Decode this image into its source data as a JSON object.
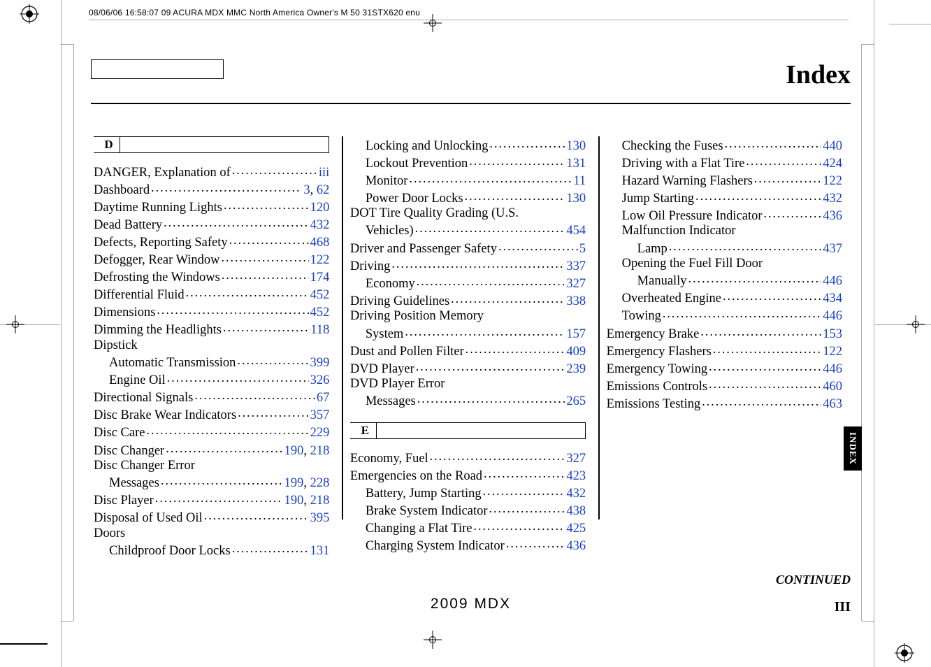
{
  "meta": {
    "header_line": "08/06/06 16:58:07    09 ACURA MDX MMC North America Owner's M 50 31STX620 enu",
    "title": "Index",
    "tab_label": "INDEX",
    "continued": "CONTINUED",
    "footer_model": "2009  MDX",
    "folio": "III"
  },
  "style": {
    "link_color": "#1a3fc5",
    "text_color": "#000000",
    "rule_color": "#000000",
    "body_font_size_pt": 14,
    "title_font_size_pt": 28
  },
  "letters": {
    "D": "D",
    "E": "E"
  },
  "col1": [
    {
      "type": "head",
      "text": "D"
    },
    {
      "label": "DANGER, Explanation of",
      "pages": [
        "iii"
      ]
    },
    {
      "label": "Dashboard",
      "pages": [
        "3",
        "62"
      ]
    },
    {
      "label": "Daytime Running Lights",
      "pages": [
        "120"
      ]
    },
    {
      "label": "Dead Battery",
      "pages": [
        "432"
      ]
    },
    {
      "label": "Defects, Reporting Safety",
      "pages": [
        "468"
      ]
    },
    {
      "label": "Defogger, Rear Window",
      "pages": [
        "122"
      ]
    },
    {
      "label": "Defrosting the Windows",
      "pages": [
        "174"
      ]
    },
    {
      "label": "Differential Fluid",
      "pages": [
        "452"
      ]
    },
    {
      "label": "Dimensions",
      "pages": [
        "452"
      ]
    },
    {
      "label": "Dimming the Headlights",
      "pages": [
        "118"
      ]
    },
    {
      "label": "Dipstick",
      "cont": true
    },
    {
      "label": "Automatic Transmission",
      "pages": [
        "399"
      ],
      "indent": 1
    },
    {
      "label": "Engine Oil",
      "pages": [
        "326"
      ],
      "indent": 1
    },
    {
      "label": "Directional Signals",
      "pages": [
        "67"
      ]
    },
    {
      "label": "Disc Brake Wear Indicators",
      "pages": [
        "357"
      ]
    },
    {
      "label": "Disc Care",
      "pages": [
        "229"
      ]
    },
    {
      "label": "Disc Changer",
      "pages": [
        "190",
        "218"
      ]
    },
    {
      "label": "Disc Changer Error",
      "cont": true
    },
    {
      "label": "Messages",
      "pages": [
        "199",
        "228"
      ],
      "indent": 1
    },
    {
      "label": "Disc Player",
      "pages": [
        "190",
        "218"
      ]
    },
    {
      "label": "Disposal of Used Oil",
      "pages": [
        "395"
      ]
    },
    {
      "label": "Doors",
      "cont": true
    },
    {
      "label": "Childproof Door Locks",
      "pages": [
        "131"
      ],
      "indent": 1
    }
  ],
  "col2": [
    {
      "label": "Locking and Unlocking",
      "pages": [
        "130"
      ],
      "indent": 1
    },
    {
      "label": "Lockout Prevention",
      "pages": [
        "131"
      ],
      "indent": 1
    },
    {
      "label": "Monitor",
      "pages": [
        "11"
      ],
      "indent": 1
    },
    {
      "label": "Power Door Locks",
      "pages": [
        "130"
      ],
      "indent": 1
    },
    {
      "label": "DOT Tire Quality Grading (U.S.",
      "cont": true
    },
    {
      "label": "Vehicles)",
      "pages": [
        "454"
      ],
      "indent": 1
    },
    {
      "label": "Driver and Passenger Safety",
      "pages": [
        "5"
      ]
    },
    {
      "label": "Driving",
      "pages": [
        "337"
      ]
    },
    {
      "label": "Economy",
      "pages": [
        "327"
      ],
      "indent": 1
    },
    {
      "label": "Driving Guidelines",
      "pages": [
        "338"
      ]
    },
    {
      "label": "Driving Position Memory",
      "cont": true
    },
    {
      "label": "System",
      "pages": [
        "157"
      ],
      "indent": 1
    },
    {
      "label": "Dust and Pollen Filter",
      "pages": [
        "409"
      ]
    },
    {
      "label": "DVD Player",
      "pages": [
        "239"
      ]
    },
    {
      "label": "DVD Player Error",
      "cont": true
    },
    {
      "label": "Messages",
      "pages": [
        "265"
      ],
      "indent": 1
    },
    {
      "type": "gap"
    },
    {
      "type": "head",
      "text": "E"
    },
    {
      "label": "Economy, Fuel",
      "pages": [
        "327"
      ]
    },
    {
      "label": "Emergencies on the Road",
      "pages": [
        "423"
      ]
    },
    {
      "label": "Battery, Jump Starting",
      "pages": [
        "432"
      ],
      "indent": 1
    },
    {
      "label": "Brake System Indicator",
      "pages": [
        "438"
      ],
      "indent": 1
    },
    {
      "label": "Changing a Flat Tire",
      "pages": [
        "425"
      ],
      "indent": 1
    },
    {
      "label": "Charging System Indicator",
      "pages": [
        "436"
      ],
      "indent": 1
    }
  ],
  "col3": [
    {
      "label": "Checking the Fuses",
      "pages": [
        "440"
      ],
      "indent": 1
    },
    {
      "label": "Driving with a Flat Tire",
      "pages": [
        "424"
      ],
      "indent": 1
    },
    {
      "label": "Hazard Warning Flashers",
      "pages": [
        "122"
      ],
      "indent": 1
    },
    {
      "label": "Jump Starting",
      "pages": [
        "432"
      ],
      "indent": 1
    },
    {
      "label": "Low Oil Pressure Indicator",
      "pages": [
        "436"
      ],
      "indent": 1
    },
    {
      "label": "Malfunction Indicator",
      "cont": true,
      "indent": 1
    },
    {
      "label": "Lamp",
      "pages": [
        "437"
      ],
      "indent": 2
    },
    {
      "label": "Opening the Fuel Fill Door",
      "cont": true,
      "indent": 1
    },
    {
      "label": "Manually",
      "pages": [
        "446"
      ],
      "indent": 2
    },
    {
      "label": "Overheated Engine",
      "pages": [
        "434"
      ],
      "indent": 1
    },
    {
      "label": "Towing",
      "pages": [
        "446"
      ],
      "indent": 1
    },
    {
      "label": "Emergency Brake",
      "pages": [
        "153"
      ]
    },
    {
      "label": "Emergency Flashers",
      "pages": [
        "122"
      ]
    },
    {
      "label": "Emergency Towing",
      "pages": [
        "446"
      ]
    },
    {
      "label": "Emissions Controls",
      "pages": [
        "460"
      ]
    },
    {
      "label": "Emissions Testing",
      "pages": [
        "463"
      ]
    }
  ]
}
